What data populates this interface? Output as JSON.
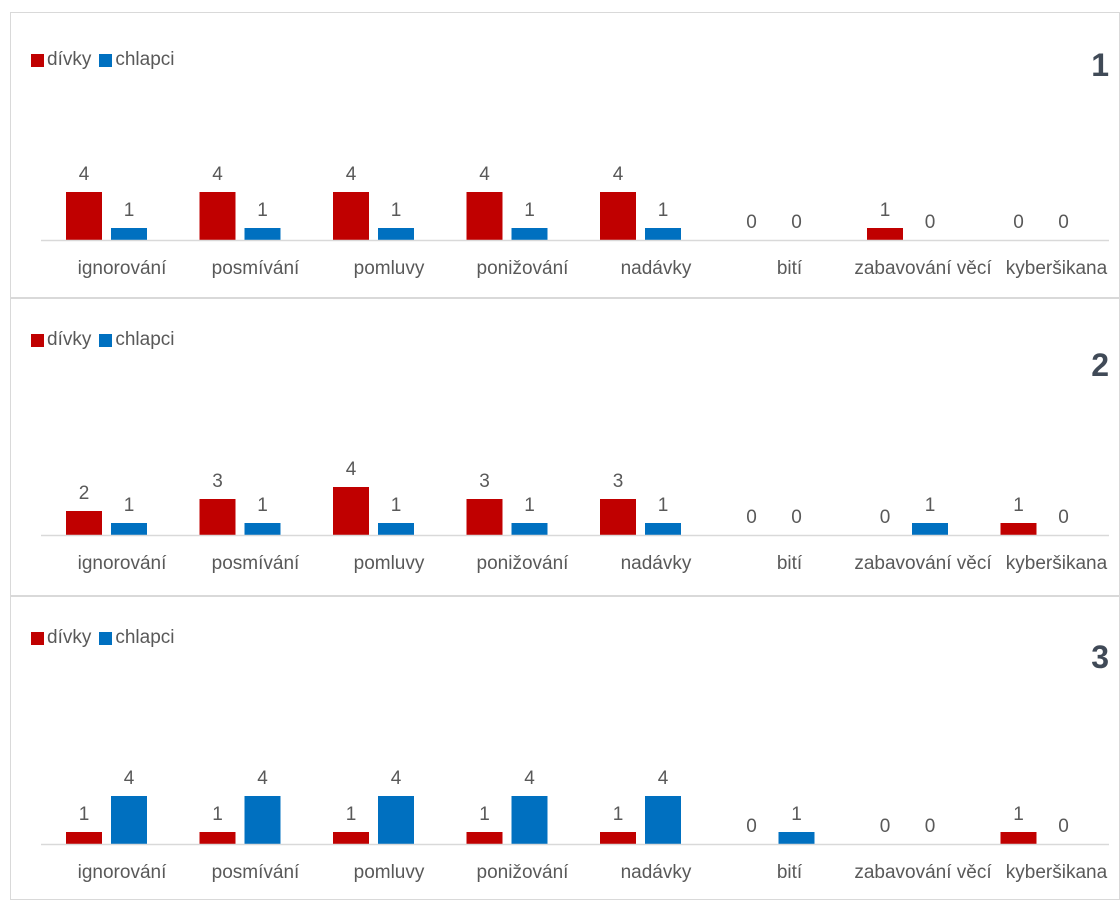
{
  "colors": {
    "divky": "#c00000",
    "chlapci": "#0070c0",
    "axis": "#d9d9d9",
    "label": "#595959"
  },
  "chart_data": [
    {
      "type": "bar",
      "panel_label": "1",
      "categories": [
        "ignorování",
        "posmívání",
        "pomluvy",
        "ponižování",
        "nadávky",
        "bití",
        "zabavování věcí",
        "kyberšikana"
      ],
      "series": [
        {
          "name": "dívky",
          "values": [
            4,
            4,
            4,
            4,
            4,
            0,
            1,
            0
          ]
        },
        {
          "name": "chlapci",
          "values": [
            1,
            1,
            1,
            1,
            1,
            0,
            0,
            0
          ]
        }
      ],
      "ylim": [
        0,
        4
      ],
      "legend": "top-left",
      "grid": false
    },
    {
      "type": "bar",
      "panel_label": "2",
      "categories": [
        "ignorování",
        "posmívání",
        "pomluvy",
        "ponižování",
        "nadávky",
        "bití",
        "zabavování věcí",
        "kyberšikana"
      ],
      "series": [
        {
          "name": "dívky",
          "values": [
            2,
            3,
            4,
            3,
            3,
            0,
            0,
            1
          ]
        },
        {
          "name": "chlapci",
          "values": [
            1,
            1,
            1,
            1,
            1,
            0,
            1,
            0
          ]
        }
      ],
      "ylim": [
        0,
        4
      ],
      "legend": "top-left",
      "grid": false
    },
    {
      "type": "bar",
      "panel_label": "3",
      "categories": [
        "ignorování",
        "posmívání",
        "pomluvy",
        "ponižování",
        "nadávky",
        "bití",
        "zabavování věcí",
        "kyberšikana"
      ],
      "series": [
        {
          "name": "dívky",
          "values": [
            1,
            1,
            1,
            1,
            1,
            0,
            0,
            1
          ]
        },
        {
          "name": "chlapci",
          "values": [
            4,
            4,
            4,
            4,
            4,
            1,
            0,
            0
          ]
        }
      ],
      "ylim": [
        0,
        4
      ],
      "legend": "top-left",
      "grid": false
    }
  ]
}
